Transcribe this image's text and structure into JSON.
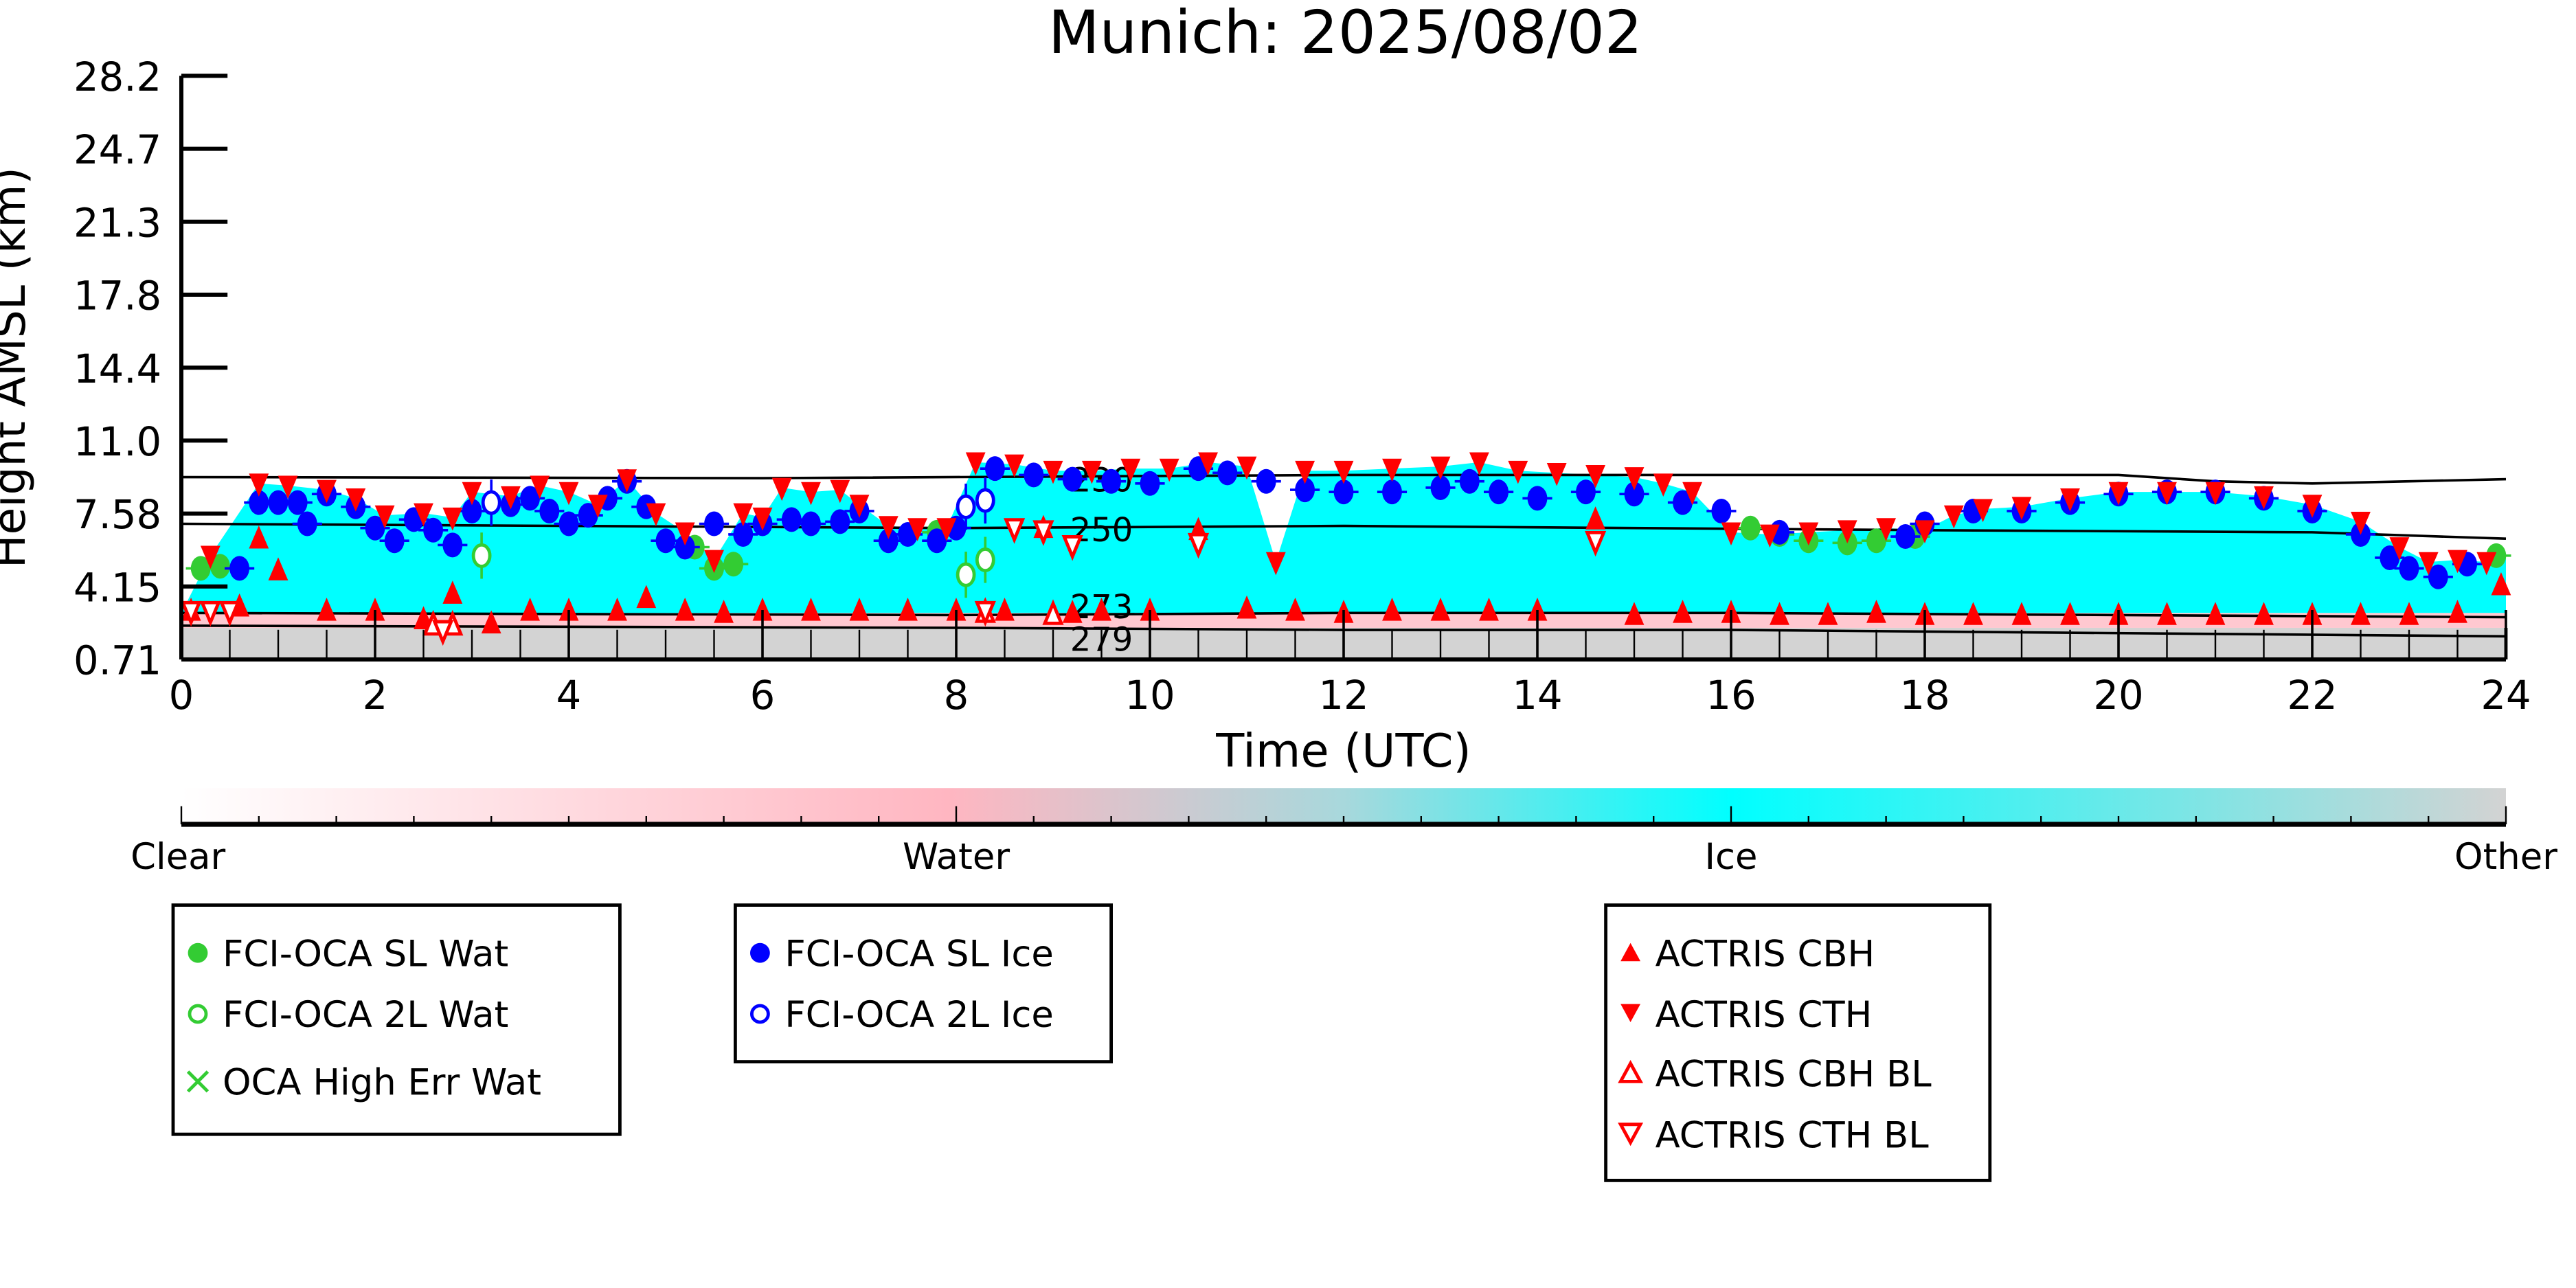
{
  "chart_data": {
    "type": "scatter",
    "title": "Munich: 2025/08/02",
    "xlabel": "Time (UTC)",
    "ylabel": "Height AMSL (km)",
    "xlim": [
      0,
      24
    ],
    "ylim": [
      0.71,
      28.2
    ],
    "xticks": [
      "0",
      "2",
      "4",
      "6",
      "8",
      "10",
      "12",
      "14",
      "16",
      "18",
      "20",
      "22",
      "24"
    ],
    "yticks": [
      "0.71",
      "4.15",
      "7.58",
      "11.0",
      "14.4",
      "17.8",
      "21.3",
      "24.7",
      "28.2"
    ],
    "colorbar": {
      "labels": [
        "Clear",
        "Water",
        "Ice",
        "Other"
      ],
      "colors": [
        "#ffffff",
        "#ffb6c1",
        "#00ffff",
        "#d3d3d3"
      ]
    },
    "isotherms": [
      {
        "label": "230",
        "heights": [
          [
            0,
            9.3
          ],
          [
            6,
            9.25
          ],
          [
            12,
            9.4
          ],
          [
            18,
            9.4
          ],
          [
            20,
            9.4
          ],
          [
            21,
            9.1
          ],
          [
            22,
            9.0
          ],
          [
            24,
            9.2
          ]
        ]
      },
      {
        "label": "250",
        "heights": [
          [
            0,
            7.1
          ],
          [
            8,
            6.9
          ],
          [
            12,
            7.0
          ],
          [
            18,
            6.8
          ],
          [
            22,
            6.7
          ],
          [
            24,
            6.4
          ]
        ]
      },
      {
        "label": "273",
        "heights": [
          [
            0,
            2.9
          ],
          [
            8,
            2.8
          ],
          [
            12,
            2.9
          ],
          [
            16,
            2.9
          ],
          [
            24,
            2.7
          ]
        ]
      },
      {
        "label": "279",
        "heights": [
          [
            0,
            2.3
          ],
          [
            8,
            2.2
          ],
          [
            12,
            2.1
          ],
          [
            16,
            2.1
          ],
          [
            24,
            1.8
          ]
        ]
      }
    ],
    "series": [
      {
        "name": "FCI-OCA SL Wat",
        "color": "#33cc33",
        "marker": "filled-circle",
        "points": [
          [
            0.2,
            5.0
          ],
          [
            0.4,
            5.1
          ],
          [
            5.3,
            6.0
          ],
          [
            5.5,
            5.0
          ],
          [
            5.7,
            5.2
          ],
          [
            7.8,
            6.7
          ],
          [
            16.2,
            6.9
          ],
          [
            16.5,
            6.6
          ],
          [
            16.8,
            6.3
          ],
          [
            17.2,
            6.2
          ],
          [
            17.5,
            6.3
          ],
          [
            17.9,
            6.5
          ],
          [
            23.9,
            5.6
          ]
        ]
      },
      {
        "name": "FCI-OCA 2L Wat",
        "color": "#33cc33",
        "marker": "open-circle",
        "points": [
          [
            3.1,
            5.6
          ],
          [
            8.1,
            4.7
          ],
          [
            8.3,
            5.4
          ]
        ]
      },
      {
        "name": "OCA High Err Wat",
        "color": "#33cc33",
        "marker": "x",
        "points": []
      },
      {
        "name": "FCI-OCA SL Ice",
        "color": "#0000ff",
        "marker": "filled-circle",
        "points": [
          [
            0.6,
            5.0
          ],
          [
            0.8,
            8.1
          ],
          [
            1.0,
            8.1
          ],
          [
            1.2,
            8.1
          ],
          [
            1.3,
            7.1
          ],
          [
            1.5,
            8.5
          ],
          [
            1.8,
            7.9
          ],
          [
            2.0,
            6.9
          ],
          [
            2.2,
            6.3
          ],
          [
            2.4,
            7.3
          ],
          [
            2.6,
            6.8
          ],
          [
            2.8,
            6.1
          ],
          [
            3.0,
            7.7
          ],
          [
            3.4,
            8.0
          ],
          [
            3.6,
            8.3
          ],
          [
            3.8,
            7.7
          ],
          [
            4.0,
            7.1
          ],
          [
            4.2,
            7.5
          ],
          [
            4.4,
            8.3
          ],
          [
            4.6,
            9.1
          ],
          [
            4.8,
            7.9
          ],
          [
            5.0,
            6.3
          ],
          [
            5.2,
            6.0
          ],
          [
            5.5,
            7.1
          ],
          [
            5.8,
            6.6
          ],
          [
            6.0,
            7.1
          ],
          [
            6.3,
            7.3
          ],
          [
            6.5,
            7.1
          ],
          [
            6.8,
            7.2
          ],
          [
            7.0,
            7.7
          ],
          [
            7.3,
            6.3
          ],
          [
            7.5,
            6.6
          ],
          [
            7.8,
            6.3
          ],
          [
            8.0,
            6.9
          ],
          [
            8.4,
            9.7
          ],
          [
            8.8,
            9.4
          ],
          [
            9.2,
            9.2
          ],
          [
            9.6,
            9.1
          ],
          [
            10.0,
            9.0
          ],
          [
            10.5,
            9.7
          ],
          [
            10.8,
            9.5
          ],
          [
            11.2,
            9.1
          ],
          [
            11.6,
            8.7
          ],
          [
            12.0,
            8.6
          ],
          [
            12.5,
            8.6
          ],
          [
            13.0,
            8.8
          ],
          [
            13.3,
            9.1
          ],
          [
            13.6,
            8.6
          ],
          [
            14.0,
            8.3
          ],
          [
            14.5,
            8.6
          ],
          [
            15.0,
            8.5
          ],
          [
            15.5,
            8.1
          ],
          [
            15.9,
            7.7
          ],
          [
            16.5,
            6.7
          ],
          [
            17.8,
            6.5
          ],
          [
            18.0,
            7.1
          ],
          [
            18.5,
            7.7
          ],
          [
            19.0,
            7.7
          ],
          [
            19.5,
            8.1
          ],
          [
            20.0,
            8.5
          ],
          [
            20.5,
            8.6
          ],
          [
            21.0,
            8.6
          ],
          [
            21.5,
            8.3
          ],
          [
            22.0,
            7.7
          ],
          [
            22.5,
            6.6
          ],
          [
            22.8,
            5.5
          ],
          [
            23.0,
            5.0
          ],
          [
            23.3,
            4.6
          ],
          [
            23.6,
            5.2
          ]
        ]
      },
      {
        "name": "FCI-OCA 2L Ice",
        "color": "#0000ff",
        "marker": "open-circle",
        "points": [
          [
            3.2,
            8.1
          ],
          [
            8.1,
            7.9
          ],
          [
            8.3,
            8.2
          ]
        ]
      },
      {
        "name": "ACTRIS CBH",
        "color": "#ff0000",
        "marker": "triangle-up",
        "points": [
          [
            0.1,
            3.0
          ],
          [
            0.6,
            3.2
          ],
          [
            0.8,
            6.4
          ],
          [
            1.0,
            4.9
          ],
          [
            1.5,
            3.0
          ],
          [
            2.0,
            3.0
          ],
          [
            2.5,
            2.6
          ],
          [
            2.8,
            3.8
          ],
          [
            3.2,
            2.4
          ],
          [
            3.6,
            3.0
          ],
          [
            4.0,
            3.0
          ],
          [
            4.5,
            3.0
          ],
          [
            4.8,
            3.6
          ],
          [
            5.2,
            3.0
          ],
          [
            5.6,
            2.9
          ],
          [
            6.0,
            3.0
          ],
          [
            6.5,
            3.0
          ],
          [
            7.0,
            3.0
          ],
          [
            7.5,
            3.0
          ],
          [
            8.0,
            3.0
          ],
          [
            8.5,
            3.0
          ],
          [
            8.9,
            6.9
          ],
          [
            9.2,
            2.9
          ],
          [
            9.5,
            3.0
          ],
          [
            10.0,
            3.0
          ],
          [
            10.5,
            6.8
          ],
          [
            11.0,
            3.1
          ],
          [
            11.5,
            3.0
          ],
          [
            12.0,
            2.9
          ],
          [
            12.5,
            3.0
          ],
          [
            13.0,
            3.0
          ],
          [
            13.5,
            3.0
          ],
          [
            14.0,
            3.0
          ],
          [
            14.6,
            7.3
          ],
          [
            15.0,
            2.8
          ],
          [
            15.5,
            2.9
          ],
          [
            16.0,
            2.9
          ],
          [
            16.5,
            2.8
          ],
          [
            17.0,
            2.8
          ],
          [
            17.5,
            2.9
          ],
          [
            18.0,
            2.8
          ],
          [
            18.5,
            2.8
          ],
          [
            19.0,
            2.8
          ],
          [
            19.5,
            2.8
          ],
          [
            20.0,
            2.8
          ],
          [
            20.5,
            2.8
          ],
          [
            21.0,
            2.8
          ],
          [
            21.5,
            2.8
          ],
          [
            22.0,
            2.8
          ],
          [
            22.5,
            2.8
          ],
          [
            23.0,
            2.8
          ],
          [
            23.5,
            2.9
          ],
          [
            23.95,
            4.2
          ]
        ]
      },
      {
        "name": "ACTRIS CTH",
        "color": "#ff0000",
        "marker": "triangle-down",
        "points": [
          [
            0.3,
            5.6
          ],
          [
            0.8,
            9.0
          ],
          [
            1.1,
            8.9
          ],
          [
            1.5,
            8.7
          ],
          [
            1.8,
            8.3
          ],
          [
            2.1,
            7.5
          ],
          [
            2.5,
            7.6
          ],
          [
            2.8,
            7.4
          ],
          [
            3.0,
            8.6
          ],
          [
            3.4,
            8.4
          ],
          [
            3.7,
            8.9
          ],
          [
            4.0,
            8.6
          ],
          [
            4.3,
            8.0
          ],
          [
            4.6,
            9.2
          ],
          [
            4.9,
            7.6
          ],
          [
            5.2,
            6.7
          ],
          [
            5.5,
            5.4
          ],
          [
            5.8,
            7.6
          ],
          [
            6.0,
            7.4
          ],
          [
            6.2,
            8.8
          ],
          [
            6.5,
            8.6
          ],
          [
            6.8,
            8.7
          ],
          [
            7.0,
            8.0
          ],
          [
            7.3,
            7.0
          ],
          [
            7.6,
            6.9
          ],
          [
            7.9,
            6.9
          ],
          [
            8.2,
            10.0
          ],
          [
            8.6,
            9.9
          ],
          [
            9.0,
            9.6
          ],
          [
            9.4,
            9.6
          ],
          [
            9.8,
            9.7
          ],
          [
            10.2,
            9.7
          ],
          [
            10.6,
            10.0
          ],
          [
            11.0,
            9.8
          ],
          [
            11.3,
            5.3
          ],
          [
            11.6,
            9.6
          ],
          [
            12.0,
            9.6
          ],
          [
            12.5,
            9.7
          ],
          [
            13.0,
            9.8
          ],
          [
            13.4,
            10.0
          ],
          [
            13.8,
            9.6
          ],
          [
            14.2,
            9.5
          ],
          [
            14.6,
            9.4
          ],
          [
            15.0,
            9.3
          ],
          [
            15.3,
            9.0
          ],
          [
            15.6,
            8.6
          ],
          [
            16.0,
            6.7
          ],
          [
            16.4,
            6.6
          ],
          [
            16.8,
            6.7
          ],
          [
            17.2,
            6.8
          ],
          [
            17.6,
            6.9
          ],
          [
            18.0,
            6.8
          ],
          [
            18.3,
            7.5
          ],
          [
            18.6,
            7.8
          ],
          [
            19.0,
            7.9
          ],
          [
            19.5,
            8.3
          ],
          [
            20.0,
            8.6
          ],
          [
            20.5,
            8.6
          ],
          [
            21.0,
            8.6
          ],
          [
            21.5,
            8.4
          ],
          [
            22.0,
            8.0
          ],
          [
            22.5,
            7.2
          ],
          [
            22.9,
            6.0
          ],
          [
            23.2,
            5.3
          ],
          [
            23.5,
            5.4
          ],
          [
            23.8,
            5.3
          ]
        ]
      },
      {
        "name": "ACTRIS CBH BL",
        "color": "#ff0000",
        "marker": "open-triangle-up",
        "points": [
          [
            2.6,
            2.3
          ],
          [
            2.8,
            2.3
          ],
          [
            8.3,
            2.9
          ],
          [
            9.0,
            2.8
          ]
        ]
      },
      {
        "name": "ACTRIS CTH BL",
        "color": "#ff0000",
        "marker": "open-triangle-down",
        "points": [
          [
            0.1,
            3.0
          ],
          [
            0.3,
            3.0
          ],
          [
            0.5,
            3.0
          ],
          [
            2.7,
            2.1
          ],
          [
            8.3,
            3.0
          ],
          [
            8.6,
            6.9
          ],
          [
            8.9,
            6.8
          ],
          [
            9.2,
            6.1
          ],
          [
            10.5,
            6.2
          ],
          [
            14.6,
            6.3
          ]
        ]
      }
    ]
  }
}
